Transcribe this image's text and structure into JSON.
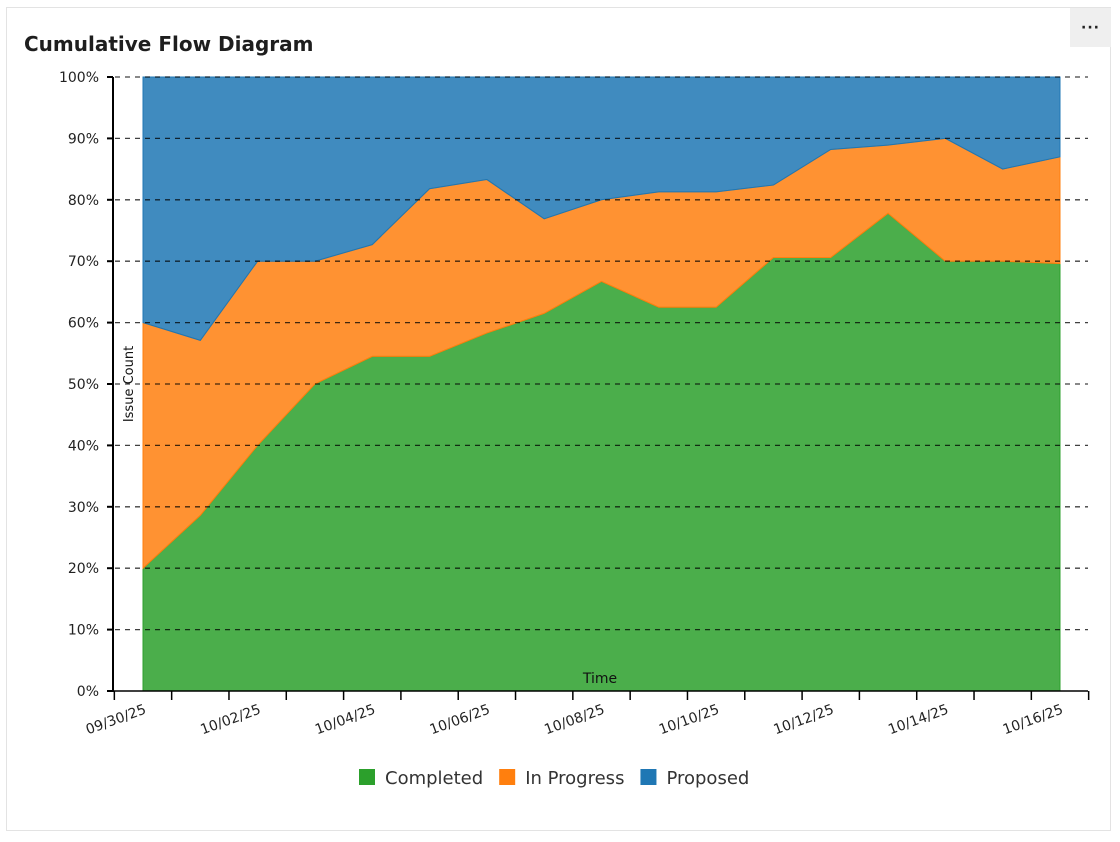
{
  "header": {
    "title": "Cumulative Flow Diagram",
    "menu_label": "···"
  },
  "chart_data": {
    "type": "area",
    "stacked": true,
    "title": "Cumulative Flow Diagram",
    "xlabel": "Time",
    "ylabel": "Issue Count",
    "ylim": [
      0,
      100
    ],
    "y_ticks": [
      "0%",
      "10%",
      "20%",
      "30%",
      "40%",
      "50%",
      "60%",
      "70%",
      "80%",
      "90%",
      "100%"
    ],
    "x_tick_labels": [
      "09/30/25",
      "10/02/25",
      "10/04/25",
      "10/06/25",
      "10/08/25",
      "10/10/25",
      "10/12/25",
      "10/14/25",
      "10/16/25"
    ],
    "x": [
      "09/30/25",
      "10/01/25",
      "10/02/25",
      "10/03/25",
      "10/04/25",
      "10/05/25",
      "10/06/25",
      "10/07/25",
      "10/08/25",
      "10/09/25",
      "10/10/25",
      "10/11/25",
      "10/12/25",
      "10/13/25",
      "10/14/25",
      "10/15/25",
      "10/16/25"
    ],
    "grid": true,
    "legend_position": "bottom",
    "series": [
      {
        "name": "Completed",
        "color": "#2ca02c",
        "values": [
          20,
          28.6,
          40,
          50,
          54.5,
          54.5,
          58.3,
          61.5,
          66.7,
          62.5,
          62.5,
          70.6,
          70.6,
          77.8,
          70,
          70,
          69.6
        ]
      },
      {
        "name": "In Progress",
        "color": "#ff7f0e",
        "values": [
          40,
          28.5,
          30,
          20,
          18.2,
          27.3,
          25,
          15.4,
          13.3,
          18.8,
          18.8,
          11.8,
          17.6,
          11.1,
          20,
          15,
          17.4
        ]
      },
      {
        "name": "Proposed",
        "color": "#1f77b4",
        "values": [
          40,
          42.9,
          30,
          30,
          27.3,
          18.2,
          16.7,
          23.1,
          20,
          18.7,
          18.7,
          17.6,
          11.8,
          11.1,
          10,
          15,
          13
        ]
      }
    ]
  }
}
